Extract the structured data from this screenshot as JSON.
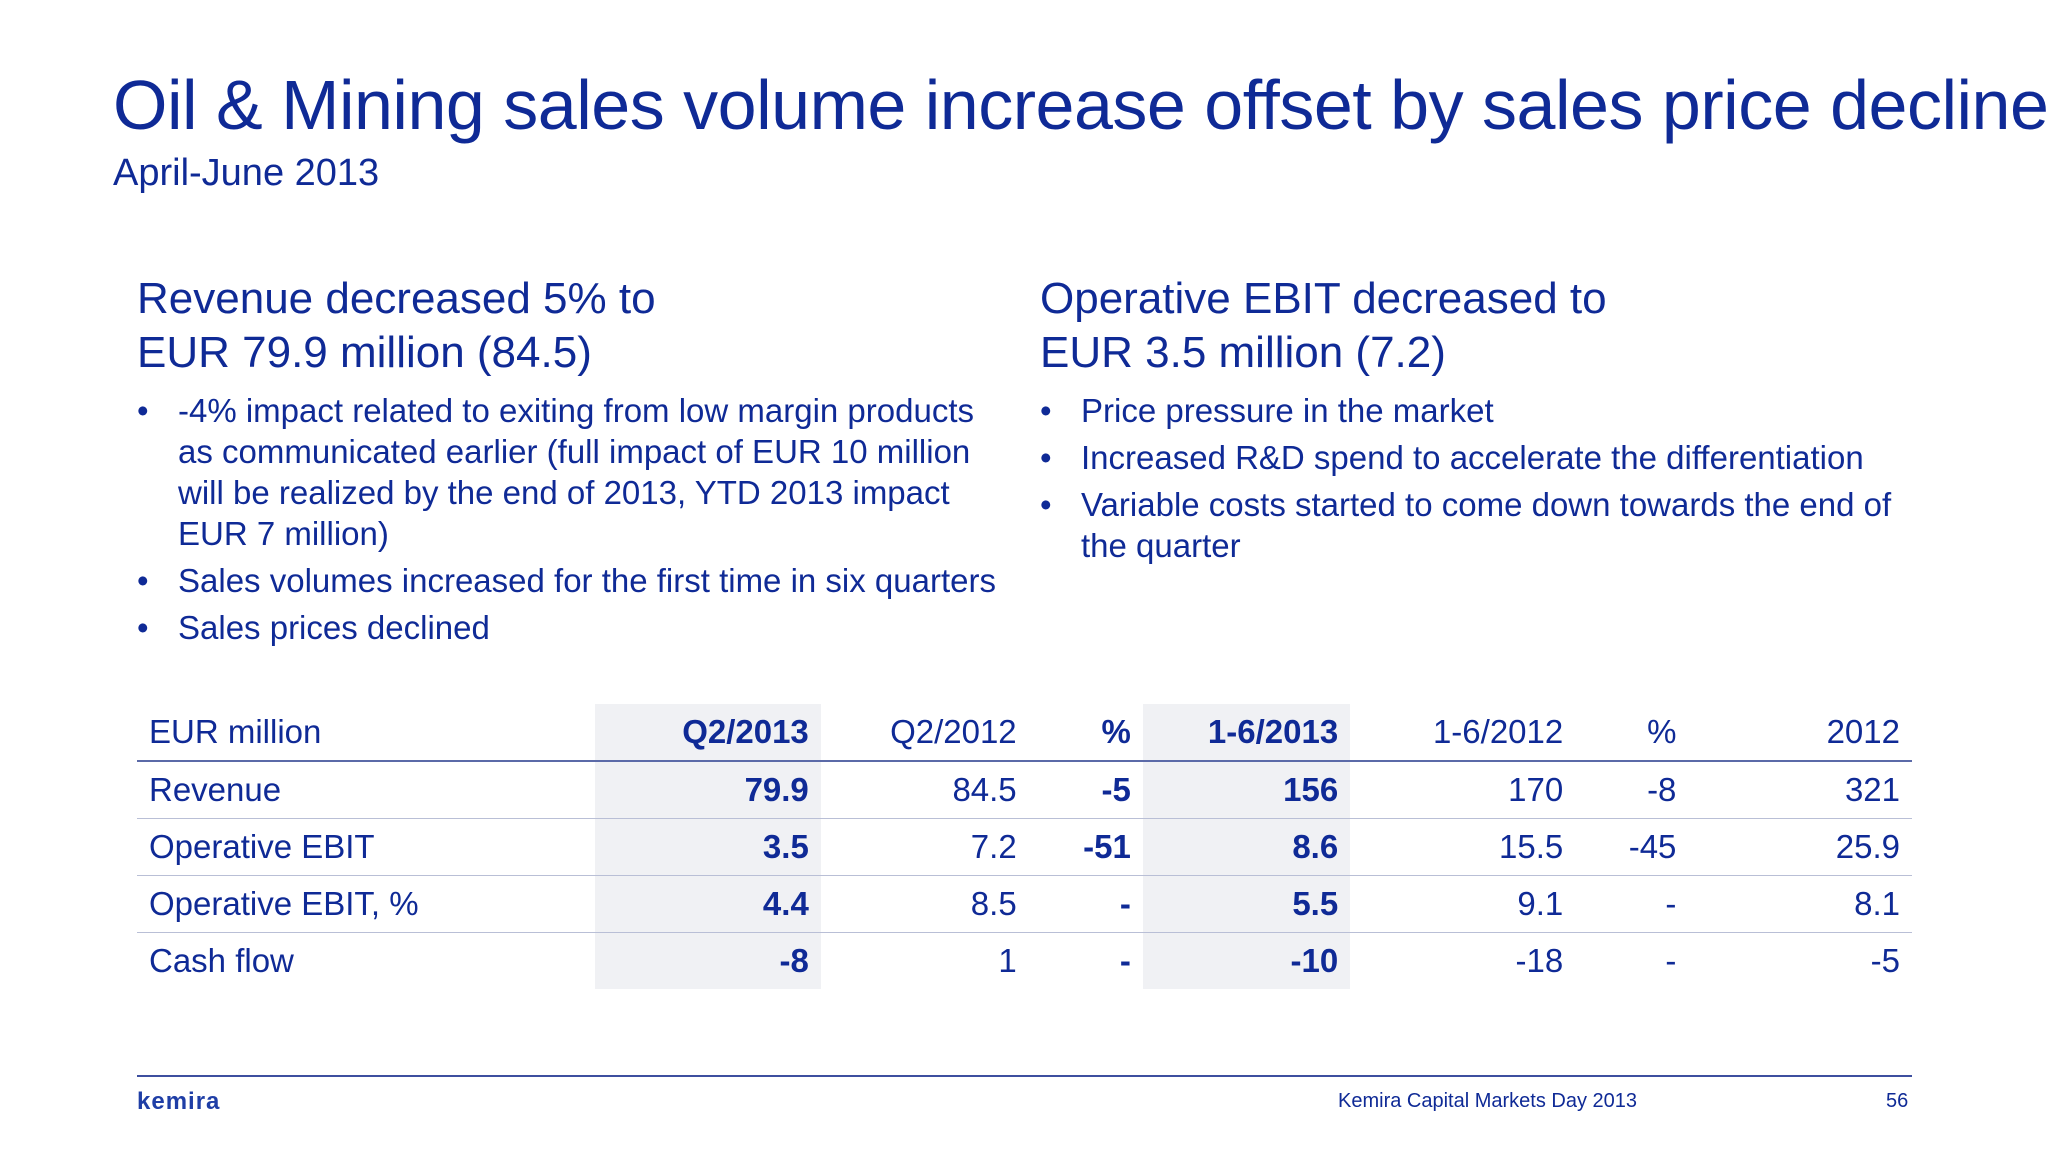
{
  "slide": {
    "title": "Oil & Mining sales volume increase offset by sales price decline",
    "subtitle": "April-June 2013"
  },
  "left": {
    "heading_line1": "Revenue decreased 5% to",
    "heading_line2": "EUR 79.9 million (84.5)",
    "bullets": [
      "-4% impact related to exiting from low margin products as communicated earlier (full impact of EUR 10 million will be realized by the end of 2013, YTD 2013  impact EUR 7 million)",
      "Sales volumes increased for the first time in six quarters",
      "Sales prices declined"
    ]
  },
  "right": {
    "heading_line1": "Operative EBIT decreased to",
    "heading_line2": "EUR 3.5 million (7.2)",
    "bullets": [
      "Price pressure in the market",
      "Increased R&D spend to accelerate the differentiation",
      "Variable costs started to come down towards the end of the quarter"
    ]
  },
  "bullet_glyph": "•",
  "table": {
    "headers": [
      "EUR million",
      "Q2/2013",
      "Q2/2012",
      "%",
      "1-6/2013",
      "1-6/2012",
      "%",
      "2012"
    ],
    "rows": [
      [
        "Revenue",
        "79.9",
        "84.5",
        "-5",
        "156",
        "170",
        "-8",
        "321"
      ],
      [
        "Operative EBIT",
        "3.5",
        "7.2",
        "-51",
        "8.6",
        "15.5",
        "-45",
        "25.9"
      ],
      [
        "Operative EBIT, %",
        "4.4",
        "8.5",
        "-",
        "5.5",
        "9.1",
        "-",
        "8.1"
      ],
      [
        "Cash flow",
        "-8",
        "1",
        "-",
        "-10",
        "-18",
        "-",
        "-5"
      ]
    ]
  },
  "footer": {
    "logo": "kemira",
    "event": "Kemira Capital Markets Day 2013",
    "page": "56"
  },
  "colors": {
    "text": "#0f2a96",
    "highlight_column": "#f0f1f4"
  }
}
